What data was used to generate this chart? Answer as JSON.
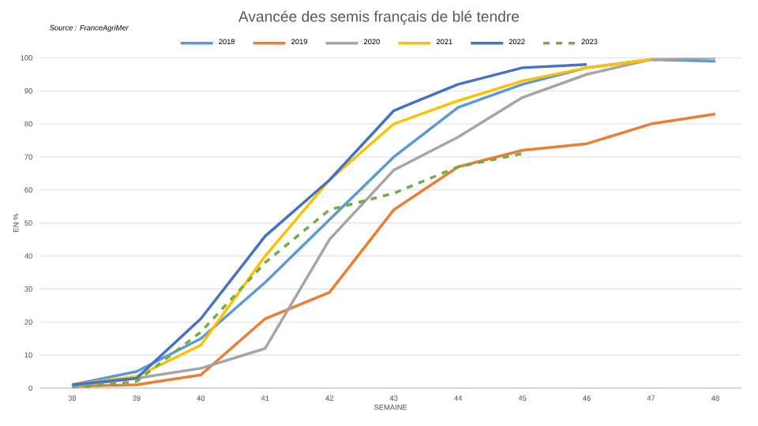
{
  "chart_data": {
    "type": "line",
    "title": "Avancée des semis français de blé tendre",
    "xlabel": "SEMAINE",
    "ylabel": "EN %",
    "annotations": [
      "Source : FranceAgriMer"
    ],
    "x": [
      38,
      39,
      40,
      41,
      42,
      43,
      44,
      45,
      46,
      47,
      48
    ],
    "xlim": [
      37.5,
      48.4
    ],
    "xticks": [
      38,
      39,
      40,
      41,
      42,
      43,
      44,
      45,
      46,
      47,
      48
    ],
    "ylim": [
      0,
      100
    ],
    "yticks": [
      0,
      10,
      20,
      30,
      40,
      50,
      60,
      70,
      80,
      90,
      100
    ],
    "grid": "y",
    "legend": "top",
    "marker": "none",
    "series": [
      {
        "name": "2018",
        "color": "#5b9bd5",
        "values": [
          1,
          5,
          15,
          32,
          51,
          70,
          85,
          92,
          97,
          99.5,
          99
        ]
      },
      {
        "name": "2019",
        "color": "#ed7d31",
        "values": [
          0.5,
          1,
          4,
          21,
          29,
          54,
          67,
          72,
          74,
          80,
          83
        ]
      },
      {
        "name": "2020",
        "color": "#a5a5a5",
        "values": [
          0.5,
          3,
          6,
          12,
          45,
          66,
          76,
          88,
          95,
          99.5,
          100
        ]
      },
      {
        "name": "2021",
        "color": "#ffc000",
        "values": [
          1,
          3.5,
          13,
          40,
          63,
          80,
          87,
          93,
          97,
          99.5,
          null
        ]
      },
      {
        "name": "2022",
        "color": "#4472c4",
        "values": [
          1,
          3,
          21,
          46,
          63,
          84,
          92,
          97,
          98,
          null,
          null
        ]
      },
      {
        "name": "2023",
        "color": "#70ad47",
        "line_style": "dashed",
        "values": [
          0,
          2,
          17,
          38,
          54,
          59,
          67,
          71,
          null,
          null,
          null
        ]
      }
    ]
  }
}
